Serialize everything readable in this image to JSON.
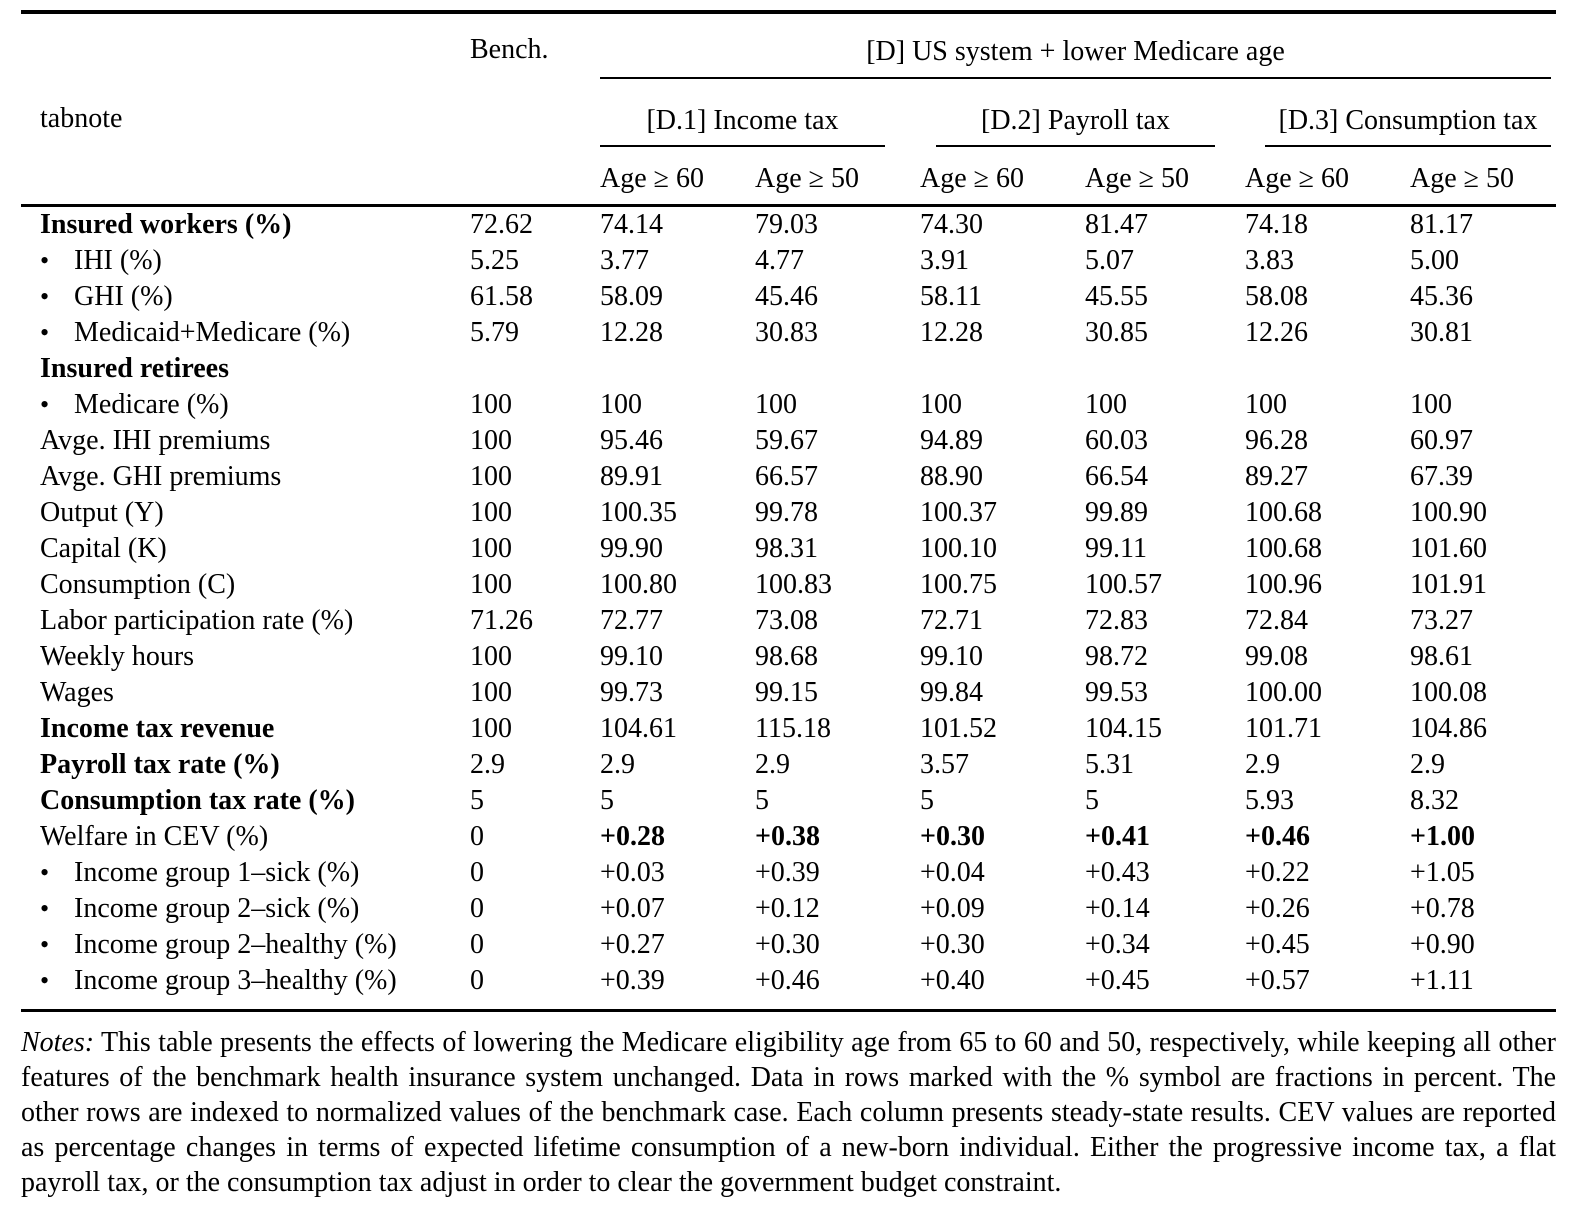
{
  "table": {
    "header": {
      "bench_label": "Bench.",
      "group_label": "[D] US system + lower Medicare age",
      "row_label_header": "tabnote",
      "subgroups": [
        "[D.1] Income tax",
        "[D.2] Payroll tax",
        "[D.3] Consumption tax"
      ],
      "age_labels": [
        "Age ≥ 60",
        "Age ≥ 50",
        "Age ≥ 60",
        "Age ≥ 50",
        "Age ≥ 60",
        "Age ≥ 50"
      ]
    },
    "rows": [
      {
        "label": "Insured workers (%)",
        "label_bold": true,
        "bullet": false,
        "values": [
          "72.62",
          "74.14",
          "79.03",
          "74.30",
          "81.47",
          "74.18",
          "81.17"
        ]
      },
      {
        "label": "IHI (%)",
        "label_bold": false,
        "bullet": true,
        "values": [
          "5.25",
          "3.77",
          "4.77",
          "3.91",
          "5.07",
          "3.83",
          "5.00"
        ]
      },
      {
        "label": "GHI (%)",
        "label_bold": false,
        "bullet": true,
        "values": [
          "61.58",
          "58.09",
          "45.46",
          "58.11",
          "45.55",
          "58.08",
          "45.36"
        ]
      },
      {
        "label": "Medicaid+Medicare (%)",
        "label_bold": false,
        "bullet": true,
        "values": [
          "5.79",
          "12.28",
          "30.83",
          "12.28",
          "30.85",
          "12.26",
          "30.81"
        ]
      },
      {
        "label": "Insured retirees",
        "label_bold": true,
        "bullet": false,
        "values": [
          "",
          "",
          "",
          "",
          "",
          "",
          ""
        ]
      },
      {
        "label": "Medicare (%)",
        "label_bold": false,
        "bullet": true,
        "values": [
          "100",
          "100",
          "100",
          "100",
          "100",
          "100",
          "100"
        ]
      },
      {
        "label": "Avge. IHI premiums",
        "label_bold": false,
        "bullet": false,
        "values": [
          "100",
          "95.46",
          "59.67",
          "94.89",
          "60.03",
          "96.28",
          "60.97"
        ]
      },
      {
        "label": "Avge. GHI premiums",
        "label_bold": false,
        "bullet": false,
        "values": [
          "100",
          "89.91",
          "66.57",
          "88.90",
          "66.54",
          "89.27",
          "67.39"
        ]
      },
      {
        "label": "Output (Y)",
        "label_bold": false,
        "bullet": false,
        "values": [
          "100",
          "100.35",
          "99.78",
          "100.37",
          "99.89",
          "100.68",
          "100.90"
        ]
      },
      {
        "label": "Capital (K)",
        "label_bold": false,
        "bullet": false,
        "values": [
          "100",
          "99.90",
          "98.31",
          "100.10",
          "99.11",
          "100.68",
          "101.60"
        ]
      },
      {
        "label": "Consumption (C)",
        "label_bold": false,
        "bullet": false,
        "values": [
          "100",
          "100.80",
          "100.83",
          "100.75",
          "100.57",
          "100.96",
          "101.91"
        ]
      },
      {
        "label": "Labor participation rate (%)",
        "label_bold": false,
        "bullet": false,
        "values": [
          "71.26",
          "72.77",
          "73.08",
          "72.71",
          "72.83",
          "72.84",
          "73.27"
        ]
      },
      {
        "label": "Weekly hours",
        "label_bold": false,
        "bullet": false,
        "values": [
          "100",
          "99.10",
          "98.68",
          "99.10",
          "98.72",
          "99.08",
          "98.61"
        ]
      },
      {
        "label": "Wages",
        "label_bold": false,
        "bullet": false,
        "values": [
          "100",
          "99.73",
          "99.15",
          "99.84",
          "99.53",
          "100.00",
          "100.08"
        ]
      },
      {
        "label": "Income tax revenue",
        "label_bold": true,
        "bullet": false,
        "values": [
          "100",
          "104.61",
          "115.18",
          "101.52",
          "104.15",
          "101.71",
          "104.86"
        ]
      },
      {
        "label": "Payroll tax rate (%)",
        "label_bold": true,
        "bullet": false,
        "values": [
          "2.9",
          "2.9",
          "2.9",
          "3.57",
          "5.31",
          "2.9",
          "2.9"
        ]
      },
      {
        "label": "Consumption tax rate (%)",
        "label_bold": true,
        "bullet": false,
        "values": [
          "5",
          "5",
          "5",
          "5",
          "5",
          "5.93",
          "8.32"
        ]
      },
      {
        "label": "Welfare in CEV (%)",
        "label_bold": false,
        "bullet": false,
        "values": [
          "0",
          "+0.28",
          "+0.38",
          "+0.30",
          "+0.41",
          "+0.46",
          "+1.00"
        ],
        "values_bold": [
          false,
          true,
          true,
          true,
          true,
          true,
          true
        ]
      },
      {
        "label": "Income group 1–sick (%)",
        "label_bold": false,
        "bullet": true,
        "values": [
          "0",
          "+0.03",
          "+0.39",
          "+0.04",
          "+0.43",
          "+0.22",
          "+1.05"
        ]
      },
      {
        "label": "Income group 2–sick (%)",
        "label_bold": false,
        "bullet": true,
        "values": [
          "0",
          "+0.07",
          "+0.12",
          "+0.09",
          "+0.14",
          "+0.26",
          "+0.78"
        ]
      },
      {
        "label": "Income group 2–healthy (%)",
        "label_bold": false,
        "bullet": true,
        "values": [
          "0",
          "+0.27",
          "+0.30",
          "+0.30",
          "+0.34",
          "+0.45",
          "+0.90"
        ]
      },
      {
        "label": "Income group 3–healthy (%)",
        "label_bold": false,
        "bullet": true,
        "values": [
          "0",
          "+0.39",
          "+0.46",
          "+0.40",
          "+0.45",
          "+0.57",
          "+1.11"
        ]
      }
    ],
    "bullet_char": "•"
  },
  "notes": {
    "lead": "Notes:",
    "body": "This table presents the effects of lowering the Medicare eligibility age from 65 to 60 and 50, respectively, while keeping all other features of the benchmark health insurance system unchanged. Data in rows marked with the % symbol are fractions in percent. The other rows are indexed to normalized values of the benchmark case. Each column presents steady-state results. CEV values are reported as percentage changes in terms of expected lifetime consumption of a new-born individual. Either the progressive income tax, a flat payroll tax, or the consumption tax adjust in order to clear the government budget constraint."
  }
}
